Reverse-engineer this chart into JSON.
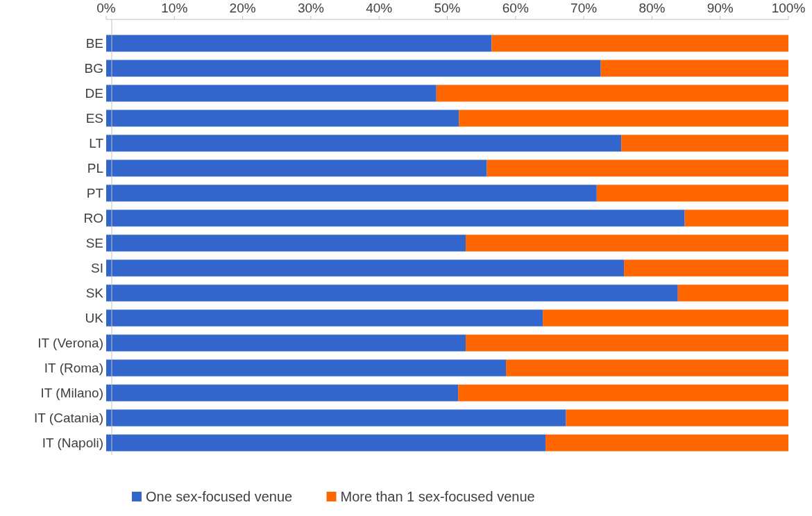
{
  "chart_data": {
    "type": "bar",
    "orientation": "horizontal",
    "stacked": true,
    "categories": [
      "BE",
      "BG",
      "DE",
      "ES",
      "LT",
      "PL",
      "PT",
      "RO",
      "SE",
      "SI",
      "SK",
      "UK",
      "IT (Verona)",
      "IT (Roma)",
      "IT (Milano)",
      "IT (Catania)",
      "IT (Napoli)"
    ],
    "series": [
      {
        "name": "One sex-focused venue",
        "color": "#3366cc",
        "values": [
          56.5,
          72.5,
          48.4,
          51.7,
          75.5,
          55.8,
          71.9,
          84.8,
          52.7,
          75.9,
          83.8,
          64.0,
          52.7,
          58.6,
          51.6,
          67.4,
          64.4
        ]
      },
      {
        "name": "More than 1 sex-focused venue",
        "color": "#ff6600",
        "values": [
          43.5,
          27.5,
          51.6,
          48.3,
          24.5,
          44.2,
          28.1,
          15.2,
          47.3,
          24.1,
          16.2,
          36.0,
          47.3,
          41.4,
          48.4,
          32.6,
          35.6
        ]
      }
    ],
    "xlim": [
      0,
      100
    ],
    "xticks": [
      {
        "value": 0,
        "label": "0%"
      },
      {
        "value": 10,
        "label": "10%"
      },
      {
        "value": 20,
        "label": "20%"
      },
      {
        "value": 30,
        "label": "30%"
      },
      {
        "value": 40,
        "label": "40%"
      },
      {
        "value": 50,
        "label": "50%"
      },
      {
        "value": 60,
        "label": "60%"
      },
      {
        "value": 70,
        "label": "70%"
      },
      {
        "value": 80,
        "label": "80%"
      },
      {
        "value": 90,
        "label": "90%"
      },
      {
        "value": 100,
        "label": "100%"
      }
    ],
    "grid": false,
    "legend": "bottom"
  }
}
